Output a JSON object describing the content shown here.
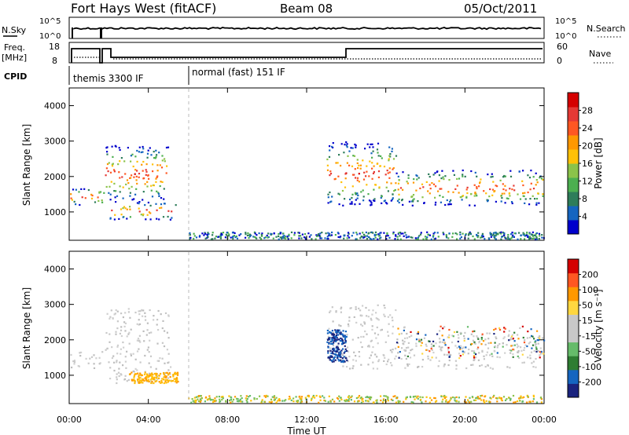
{
  "header": {
    "station": "Fort Hays West (fitACF)",
    "beam": "Beam 08",
    "date": "05/Oct/2011"
  },
  "noise_panel": {
    "left_label": "N.Sky",
    "right_label": "N.Search",
    "left_ticks": [
      "10^5",
      "10^0"
    ],
    "right_ticks": [
      "10^5",
      "10^0"
    ]
  },
  "freq_panel": {
    "left_label_1": "Freq.",
    "left_label_2": "[MHz]",
    "right_label": "Nave",
    "left_ticks": [
      "18",
      "8"
    ],
    "right_ticks": [
      "60",
      "0"
    ]
  },
  "cpid": {
    "label": "CPID",
    "segments": [
      {
        "text": "themis 3300 IF",
        "start_hour": 0
      },
      {
        "text": "normal (fast) 151 IF",
        "start_hour": 6
      }
    ]
  },
  "colors": {
    "power": [
      "#0000cc",
      "#1565c0",
      "#2e7d5a",
      "#4caf50",
      "#8bc34a",
      "#ffc107",
      "#ff9800",
      "#ff5722",
      "#e53935",
      "#d50000"
    ],
    "velocity": [
      "#1a237e",
      "#1565c0",
      "#2e7d32",
      "#66bb6a",
      "#c8c8c8",
      "#c8c8c8",
      "#ffd740",
      "#ff9800",
      "#ff5722",
      "#d50000"
    ]
  },
  "chart_data": [
    {
      "type": "heatmap",
      "panel": "power",
      "ylabel": "Slant Range [km]",
      "ylim": [
        200,
        4500
      ],
      "yticks": [
        "4000",
        "3000",
        "2000",
        "1000"
      ],
      "x_hours": [
        0,
        4,
        8,
        12,
        16,
        20,
        24
      ],
      "colorbar": {
        "label": "Power [dB]",
        "ticks": [
          "28",
          "24",
          "20",
          "16",
          "12",
          "8",
          "4"
        ]
      },
      "regions": [
        {
          "t0": 0.0,
          "t1": 1.8,
          "r0": 1200,
          "r1": 1700
        },
        {
          "t0": 1.8,
          "t1": 5.0,
          "r0": 1300,
          "r1": 2900
        },
        {
          "t0": 2.0,
          "t1": 5.5,
          "r0": 800,
          "r1": 1300
        },
        {
          "t0": 13.0,
          "t1": 16.5,
          "r0": 1200,
          "r1": 3000
        },
        {
          "t0": 16.5,
          "t1": 24.0,
          "r0": 1200,
          "r1": 2200
        }
      ]
    },
    {
      "type": "heatmap",
      "panel": "velocity",
      "ylabel": "Slant Range [km]",
      "ylim": [
        200,
        4500
      ],
      "yticks": [
        "4000",
        "3000",
        "2000",
        "1000"
      ],
      "x_hours": [
        0,
        4,
        8,
        12,
        16,
        20,
        24
      ],
      "xticklabels": [
        "00:00",
        "04:00",
        "08:00",
        "12:00",
        "16:00",
        "20:00",
        "00:00"
      ],
      "xlabel": "Time UT",
      "colorbar": {
        "label": "Velocity [m s⁻¹]",
        "ticks": [
          "200",
          "100",
          "50",
          "15",
          "-15",
          "-50",
          "-100",
          "-200"
        ]
      }
    }
  ]
}
